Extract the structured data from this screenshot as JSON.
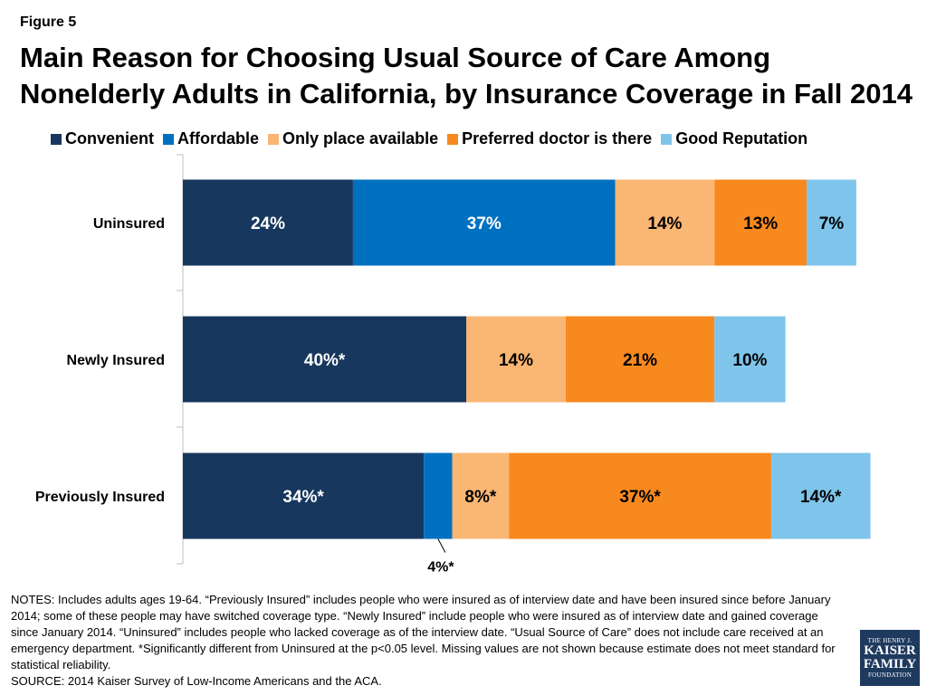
{
  "figure_label": "Figure 5",
  "title": "Main Reason for Choosing Usual Source of Care Among Nonelderly Adults in California, by Insurance Coverage in Fall 2014",
  "legend": [
    {
      "label": "Convenient",
      "color": "#17375e"
    },
    {
      "label": "Affordable",
      "color": "#0070c0"
    },
    {
      "label": "Only place available",
      "color": "#fab673"
    },
    {
      "label": "Preferred doctor is there",
      "color": "#f7891f"
    },
    {
      "label": "Good Reputation",
      "color": "#7fc4ea"
    }
  ],
  "chart_data": {
    "type": "bar",
    "orientation": "horizontal",
    "stacked": true,
    "categories": [
      "Uninsured",
      "Newly Insured",
      "Previously Insured"
    ],
    "series": [
      {
        "name": "Convenient",
        "color": "#17375e",
        "values": [
          24,
          40,
          34
        ],
        "labels": [
          "24%",
          "40%*",
          "34%*"
        ]
      },
      {
        "name": "Affordable",
        "color": "#0070c0",
        "values": [
          37,
          0,
          4
        ],
        "labels": [
          "37%",
          "",
          "4%*"
        ]
      },
      {
        "name": "Only place available",
        "color": "#fab673",
        "values": [
          14,
          14,
          8
        ],
        "labels": [
          "14%",
          "14%",
          "8%*"
        ]
      },
      {
        "name": "Preferred doctor is there",
        "color": "#f7891f",
        "values": [
          13,
          21,
          37
        ],
        "labels": [
          "13%",
          "21%",
          "37%*"
        ]
      },
      {
        "name": "Good Reputation",
        "color": "#7fc4ea",
        "values": [
          7,
          10,
          14
        ],
        "labels": [
          "7%",
          "10%",
          "14%*"
        ]
      }
    ],
    "xlim": [
      0,
      100
    ],
    "grid": false,
    "legend_position": "top"
  },
  "notes": [
    "NOTES: Includes adults ages 19-64. “Previously Insured” includes people who were insured as of interview date and have been insured since before January 2014; some of these people may have switched coverage type. “Newly Insured” include people who were insured as of interview date and gained coverage since January 2014. “Uninsured” includes people who lacked coverage as of the interview date. “Usual Source of Care” does not include care received at an emergency department. *Significantly different from Uninsured at the p<0.05 level. Missing values are not shown because estimate does not meet standard for statistical reliability.",
    "SOURCE: 2014 Kaiser Survey of Low-Income Americans and the ACA."
  ],
  "logo": {
    "line1": "THE HENRY J.",
    "line2": "KAISER",
    "line3": "FAMILY",
    "line4": "FOUNDATION"
  }
}
